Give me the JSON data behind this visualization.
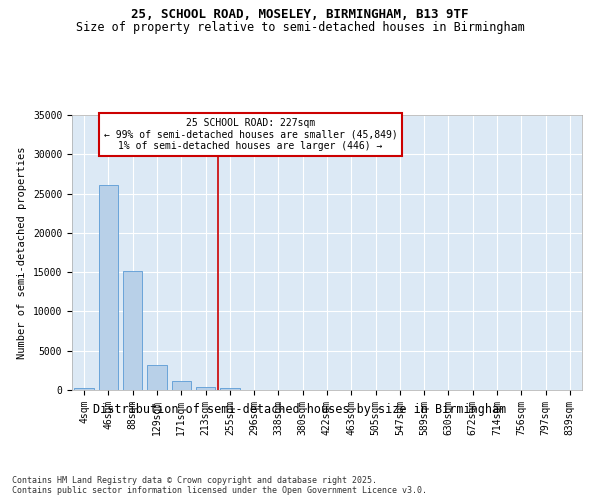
{
  "title_line1": "25, SCHOOL ROAD, MOSELEY, BIRMINGHAM, B13 9TF",
  "title_line2": "Size of property relative to semi-detached houses in Birmingham",
  "xlabel": "Distribution of semi-detached houses by size in Birmingham",
  "ylabel": "Number of semi-detached properties",
  "footer_line1": "Contains HM Land Registry data © Crown copyright and database right 2025.",
  "footer_line2": "Contains public sector information licensed under the Open Government Licence v3.0.",
  "categories": [
    "4sqm",
    "46sqm",
    "88sqm",
    "129sqm",
    "171sqm",
    "213sqm",
    "255sqm",
    "296sqm",
    "338sqm",
    "380sqm",
    "422sqm",
    "463sqm",
    "505sqm",
    "547sqm",
    "589sqm",
    "630sqm",
    "672sqm",
    "714sqm",
    "756sqm",
    "797sqm",
    "839sqm"
  ],
  "values": [
    300,
    26100,
    15100,
    3200,
    1200,
    400,
    200,
    0,
    0,
    0,
    0,
    0,
    0,
    0,
    0,
    0,
    0,
    0,
    0,
    0,
    0
  ],
  "bar_color": "#b8d0e8",
  "bar_edge_color": "#5b9bd5",
  "background_color": "#dce9f5",
  "grid_color": "#ffffff",
  "vline_color": "#cc0000",
  "vline_x": 5.5,
  "annotation_title": "25 SCHOOL ROAD: 227sqm",
  "annotation_line1": "← 99% of semi-detached houses are smaller (45,849)",
  "annotation_line2": "1% of semi-detached houses are larger (446) →",
  "annotation_box_color": "#cc0000",
  "ylim": [
    0,
    35000
  ],
  "yticks": [
    0,
    5000,
    10000,
    15000,
    20000,
    25000,
    30000,
    35000
  ],
  "title_fontsize": 9,
  "subtitle_fontsize": 8.5,
  "ylabel_fontsize": 7.5,
  "xlabel_fontsize": 8.5,
  "tick_fontsize": 7,
  "annotation_fontsize": 7,
  "footer_fontsize": 6
}
